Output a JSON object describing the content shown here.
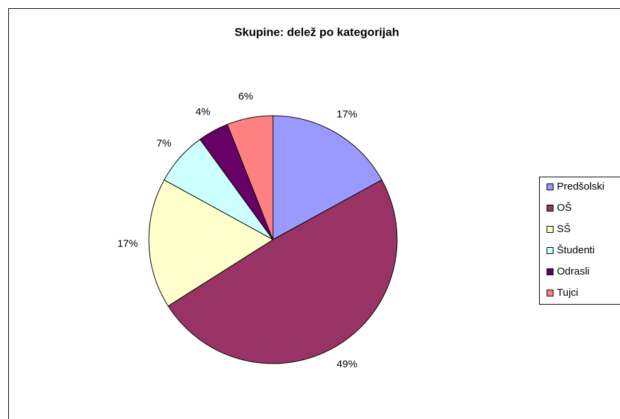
{
  "chart_data": {
    "type": "pie",
    "title": "Skupine: delež po kategorijah",
    "categories": [
      "Predšolski",
      "OŠ",
      "SŠ",
      "Študenti",
      "Odrasli",
      "Tujci"
    ],
    "values": [
      17,
      49,
      17,
      7,
      4,
      6
    ],
    "value_labels": [
      "17%",
      "49%",
      "17%",
      "7%",
      "4%",
      "6%"
    ],
    "colors": [
      "#9999ff",
      "#993366",
      "#ffffcc",
      "#ccffff",
      "#660066",
      "#ff8080"
    ],
    "legend": "right"
  }
}
